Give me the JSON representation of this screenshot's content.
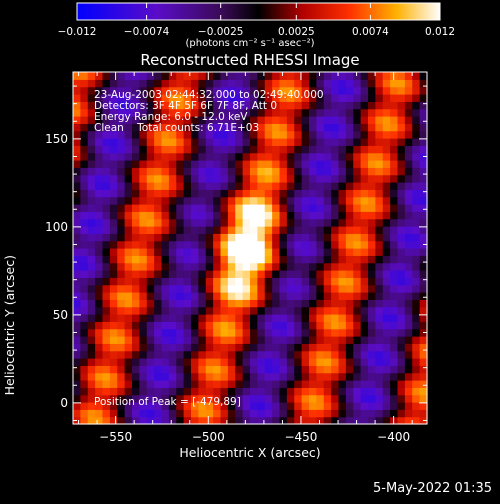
{
  "chart_data": {
    "type": "heatmap",
    "title": "Reconstructed RHESSI Image",
    "xlabel": "Heliocentric X (arcsec)",
    "ylabel": "Heliocentric Y (arcsec)",
    "xlim": [
      -573,
      -382
    ],
    "ylim": [
      -12,
      188
    ],
    "x_ticks": [
      -550,
      -500,
      -450,
      -400
    ],
    "y_ticks": [
      0,
      50,
      100,
      150
    ],
    "colorbar": {
      "range": [
        -0.012,
        0.012
      ],
      "tick_values": [
        -0.012,
        -0.0074,
        -0.0025,
        0.0025,
        0.0074,
        0.012
      ],
      "tick_labels": [
        "−0.012",
        "−0.0074",
        "−0.0025",
        "0.0025",
        "0.0074",
        "0.012"
      ],
      "units": "(photons cm⁻² s⁻¹ asec⁻²)",
      "colormap": "blue-purple-black-red-yellow-white"
    },
    "annotations": {
      "time_range": "23-Aug-2003 02:44:32.000 to 02:49:40.000",
      "detectors": "Detectors: 3F 4F 5F 6F 7F 8F, Att 0",
      "energy": "Energy Range: 6.0 - 12.0 keV",
      "method": "Clean    Total counts: 6.71E+03",
      "peak": "Position of Peak = [-479,89]"
    },
    "peak_position": [
      -479,
      89
    ],
    "peak_value": 0.012,
    "stripe_pattern": {
      "description": "diagonal alternating positive/negative stripes from the modulation pattern",
      "period_arcsec_x": 58,
      "tilt_dx_per_dy": 0.25
    }
  },
  "footer": {
    "timestamp": "5-May-2022 01:35"
  }
}
